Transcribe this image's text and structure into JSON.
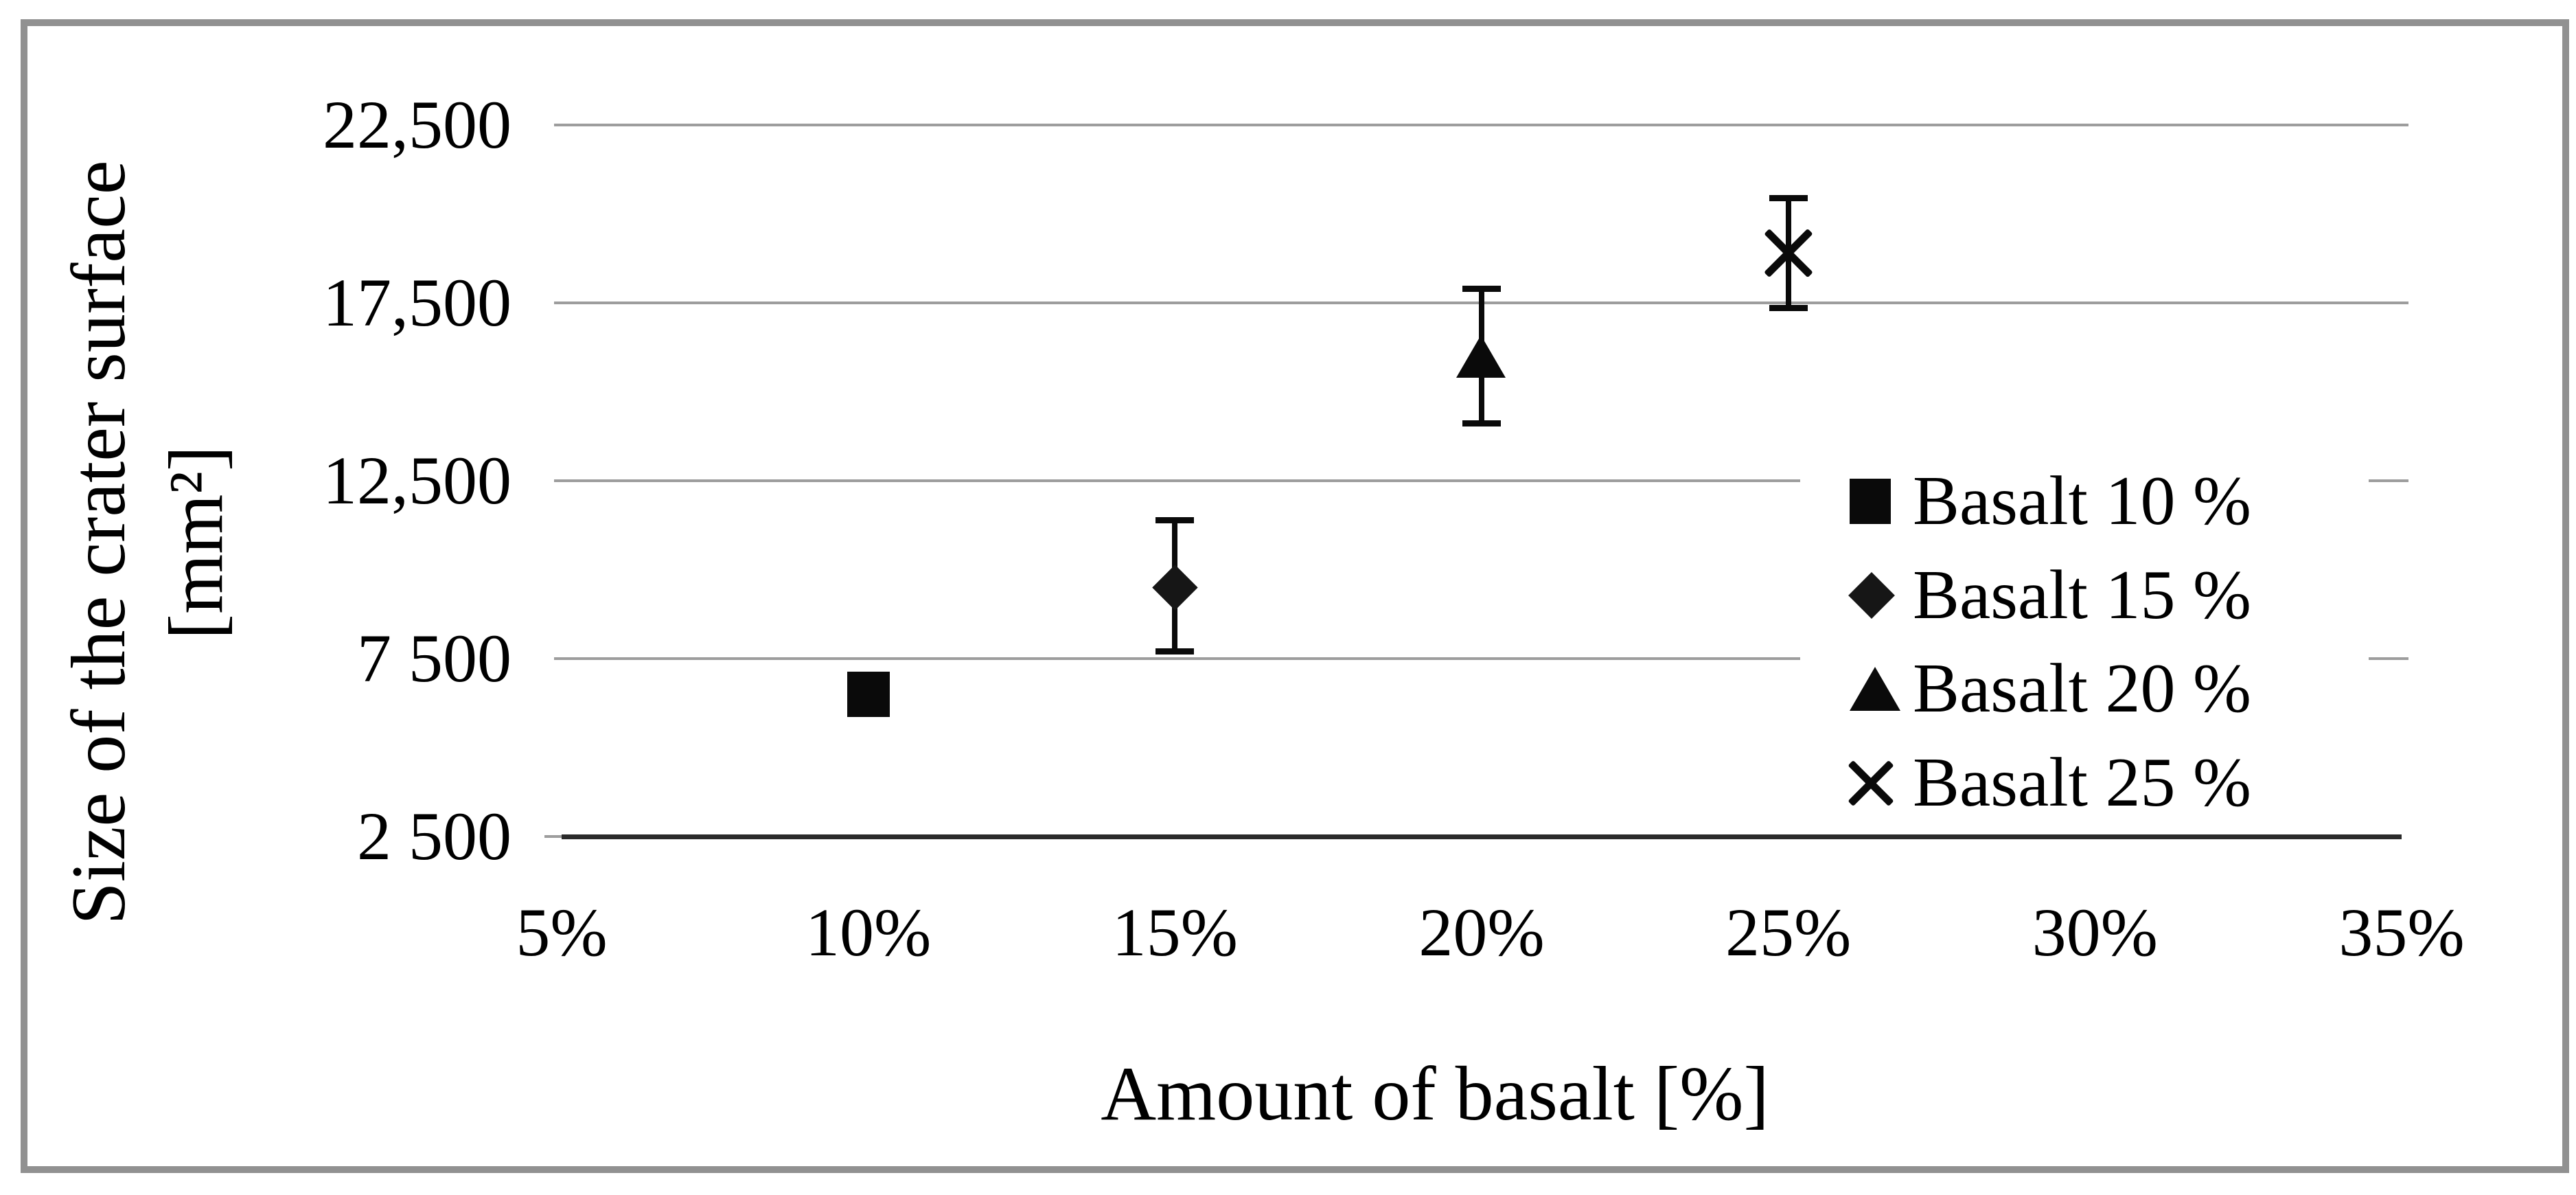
{
  "figure": {
    "background_color": "#ffffff",
    "frame_border_color": "#919191",
    "gridline_color": "#9d9d9d",
    "axis_line_color": "#2b2b2b",
    "marker_color": "#0a0a0a",
    "text_color": "#000000"
  },
  "chart_data": {
    "type": "scatter",
    "title": "",
    "xlabel": "Amount of basalt [%]",
    "ylabel_line1": "Size of the crater surface",
    "ylabel_line2": "[mm²]",
    "xlim": [
      5,
      35
    ],
    "ylim": [
      2500,
      22500
    ],
    "grid": "horizontal gridlines at each y tick",
    "legend_position": "inside right, white background over gridlines",
    "x_ticks": [
      {
        "value": 5,
        "label": "5%"
      },
      {
        "value": 10,
        "label": "10%"
      },
      {
        "value": 15,
        "label": "15%"
      },
      {
        "value": 20,
        "label": "20%"
      },
      {
        "value": 25,
        "label": "25%"
      },
      {
        "value": 30,
        "label": "30%"
      },
      {
        "value": 35,
        "label": "35%"
      }
    ],
    "y_ticks": [
      {
        "value": 22500,
        "label": "22,500"
      },
      {
        "value": 17500,
        "label": "17,500"
      },
      {
        "value": 12500,
        "label": "12,500"
      },
      {
        "value": 7500,
        "label": "7 500"
      },
      {
        "value": 2500,
        "label": "2 500"
      }
    ],
    "series": [
      {
        "name": "Basalt 10 %",
        "marker": "square",
        "x": 10,
        "y": 6500,
        "err_plus": 0,
        "err_minus": 0
      },
      {
        "name": "Basalt 15 %",
        "marker": "diamond",
        "x": 15,
        "y": 9500,
        "err_plus": 1900,
        "err_minus": 1800
      },
      {
        "name": "Basalt 20 %",
        "marker": "triangle",
        "x": 20,
        "y": 16000,
        "err_plus": 1900,
        "err_minus": 1900
      },
      {
        "name": "Basalt 25 %",
        "marker": "x",
        "x": 25,
        "y": 18900,
        "err_plus": 1550,
        "err_minus": 1550
      }
    ]
  }
}
